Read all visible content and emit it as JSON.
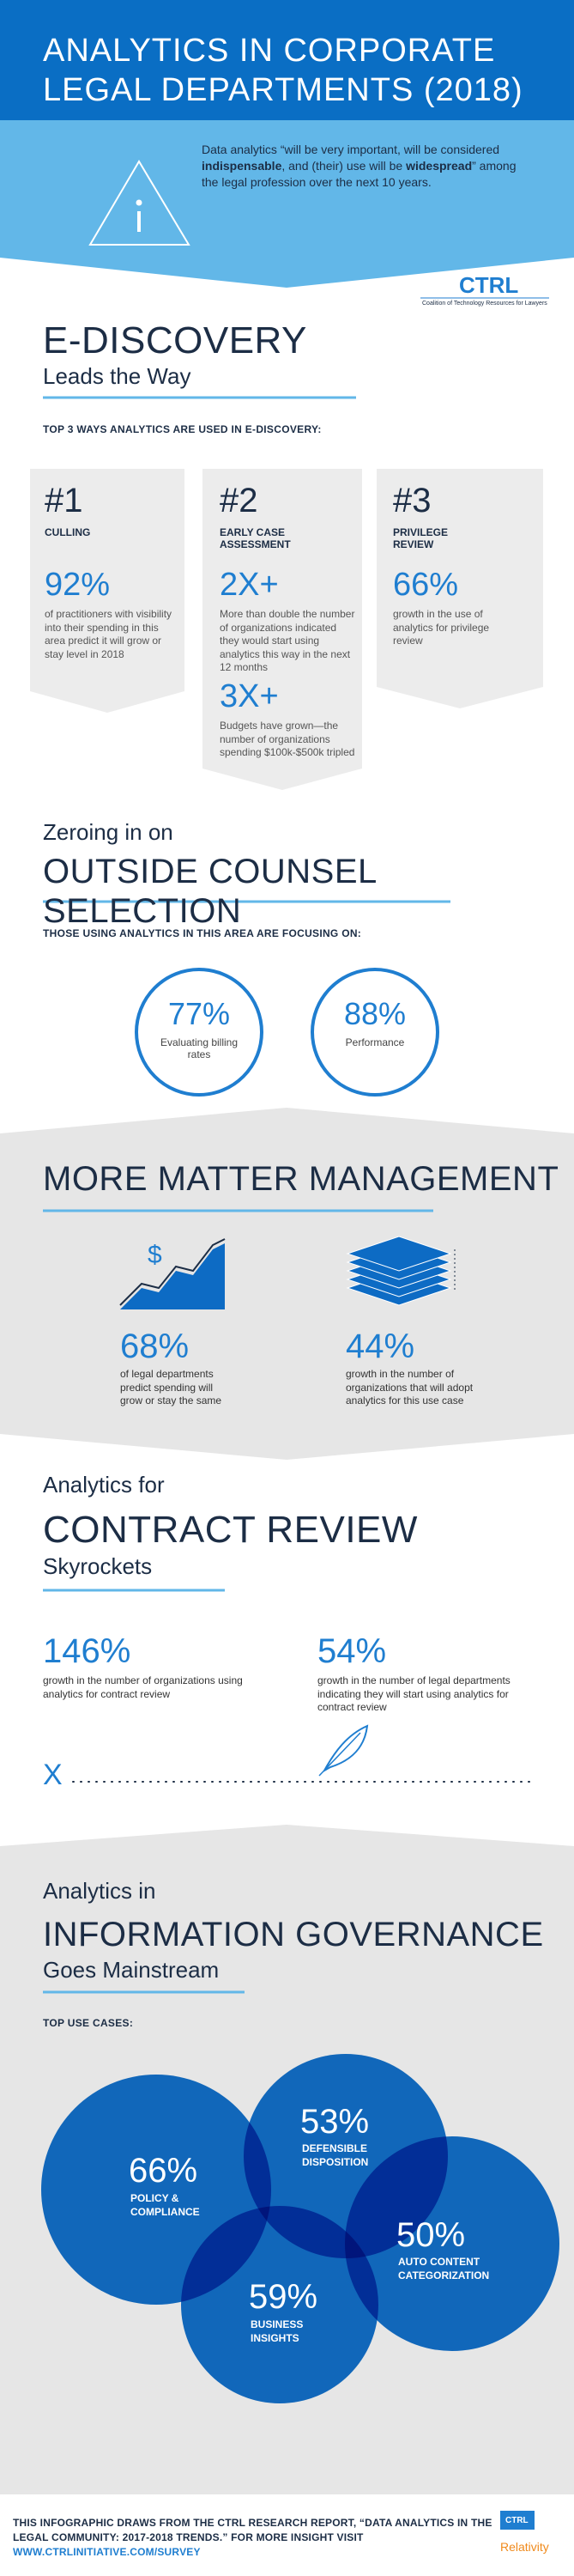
{
  "header": {
    "title_lines": [
      "ANALYTICS IN CORPORATE",
      "LEGAL DEPARTMENTS (2018)"
    ],
    "quote": [
      "Data analytics “will be very important, will be considered ",
      "indispensable",
      ", and (their) use will be ",
      "widespread",
      "” among the legal profession over the next 10 years."
    ]
  },
  "logo": {
    "name": "CTRL",
    "tagline": "Coalition of Technology Resources for Lawyers"
  },
  "ediscovery": {
    "title": "E-DISCOVERY",
    "subtitle": "Leads the Way",
    "lead": "TOP 3 WAYS ANALYTICS ARE USED IN E-DISCOVERY:",
    "cards": [
      {
        "rank": "#1",
        "label": "CULLING",
        "stats": [
          {
            "value": "92%",
            "text": "of practitioners with visibility into their spending in this area predict it will grow or stay level in 2018"
          }
        ]
      },
      {
        "rank": "#2",
        "label": "EARLY CASE ASSESSMENT",
        "stats": [
          {
            "value": "2X+",
            "text": "More than double the number of organizations indicated they would start using analytics this way in the next 12 months"
          },
          {
            "value": "3X+",
            "text": "Budgets have grown—the number of organizations spending $100k-$500k tripled"
          }
        ]
      },
      {
        "rank": "#3",
        "label": "PRIVILEGE REVIEW",
        "stats": [
          {
            "value": "66%",
            "text": "growth in the use of analytics for privilege review"
          }
        ]
      }
    ]
  },
  "outside_counsel": {
    "kicker": "Zeroing in on",
    "title": "OUTSIDE COUNSEL SELECTION",
    "lead": "THOSE USING ANALYTICS IN THIS AREA ARE FOCUSING ON:",
    "stats": [
      {
        "value": "77%",
        "text": "Evaluating billing rates"
      },
      {
        "value": "88%",
        "text": "Performance"
      }
    ]
  },
  "matter": {
    "title": "MORE MATTER MANAGEMENT",
    "icon_symbol": "$",
    "stats": [
      {
        "value": "68%",
        "text": "of legal departments predict spending will grow or stay the same"
      },
      {
        "value": "44%",
        "text": "growth in the number of organizations that will adopt analytics for this use case"
      }
    ]
  },
  "contract": {
    "kicker": "Analytics for",
    "title": "CONTRACT REVIEW",
    "subtitle": "Skyrockets",
    "stats": [
      {
        "value": "146%",
        "text": "growth in the number of organizations using analytics for contract review"
      },
      {
        "value": "54%",
        "text": "growth in the number of legal departments indicating they will start using analytics for contract review"
      }
    ],
    "sign_mark": "X"
  },
  "governance": {
    "kicker": "Analytics in",
    "title": "INFORMATION GOVERNANCE",
    "subtitle": "Goes Mainstream",
    "lead": "TOP USE CASES:",
    "cases": [
      {
        "value": "66%",
        "label": "POLICY & COMPLIANCE"
      },
      {
        "value": "53%",
        "label": "DEFENSIBLE DISPOSITION"
      },
      {
        "value": "50%",
        "label": "AUTO CONTENT CATEGORIZATION"
      },
      {
        "value": "59%",
        "label": "BUSINESS INSIGHTS"
      }
    ]
  },
  "footer": {
    "text": "THIS INFOGRAPHIC DRAWS FROM THE CTRL RESEARCH REPORT, “DATA ANALYTICS IN THE LEGAL COMMUNITY: 2017-2018 TRENDS.” FOR MORE INSIGHT VISIT",
    "link": "WWW.CTRLINITIATIVE.COM/SURVEY",
    "logos": [
      "CTRL",
      "Relativity"
    ]
  }
}
